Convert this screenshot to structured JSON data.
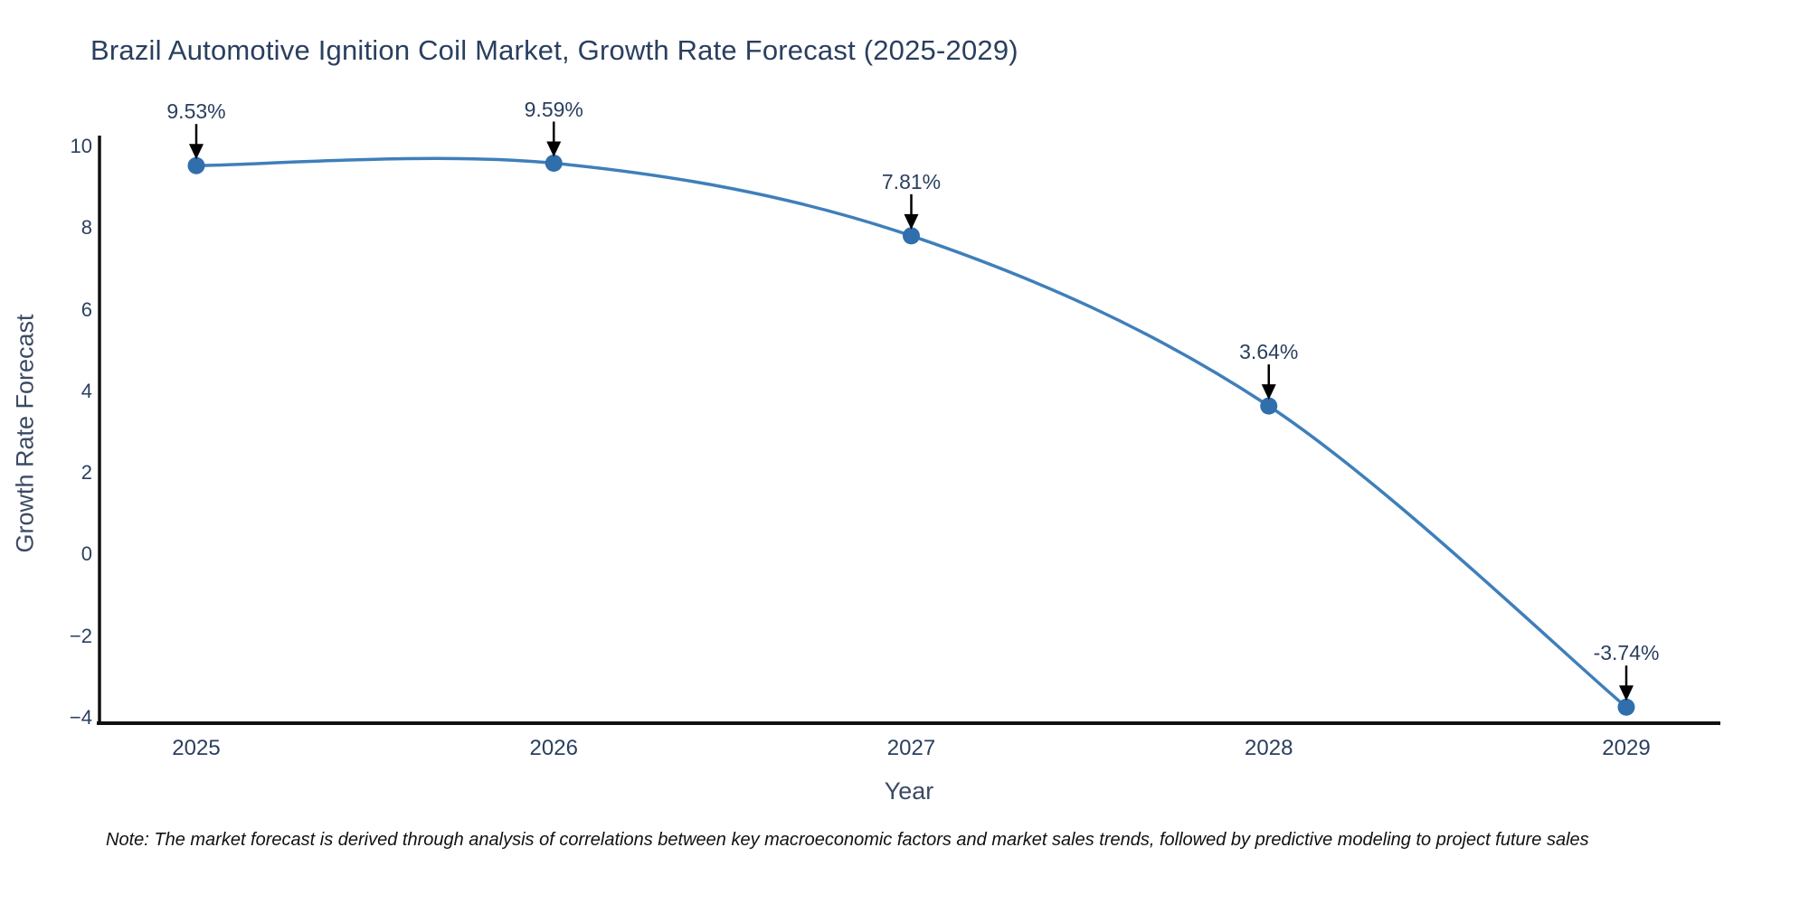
{
  "title": "Brazil Automotive Ignition Coil Market, Growth Rate Forecast (2025-2029)",
  "note": "Note: The market forecast is derived through analysis of correlations between key macroeconomic factors and market sales trends, followed by predictive modeling to project future sales",
  "chart_data": {
    "type": "line",
    "title": "Brazil Automotive Ignition Coil Market, Growth Rate Forecast (2025-2029)",
    "x": [
      "2025",
      "2026",
      "2027",
      "2028",
      "2029"
    ],
    "series": [
      {
        "name": "Growth Rate Forecast",
        "values": [
          9.53,
          9.59,
          7.81,
          3.64,
          -3.74
        ]
      }
    ],
    "data_labels": [
      "9.53%",
      "9.59%",
      "7.81%",
      "3.64%",
      "-3.74%"
    ],
    "xlabel": "Year",
    "ylabel": "Growth Rate Forecast",
    "ylim": [
      -4,
      10
    ],
    "yticks": [
      10,
      8,
      6,
      4,
      2,
      0,
      -2,
      -4
    ],
    "grid": false,
    "legend": "none",
    "line_shape": "spline",
    "annotation_arrows": true,
    "colors": {
      "line": "#3f7fba",
      "marker": "#306fac",
      "axis": "#111111",
      "text": "#2a3f5f",
      "axis_title_text": "#3b4a63",
      "arrow": "#000000",
      "background": "#ffffff"
    }
  }
}
